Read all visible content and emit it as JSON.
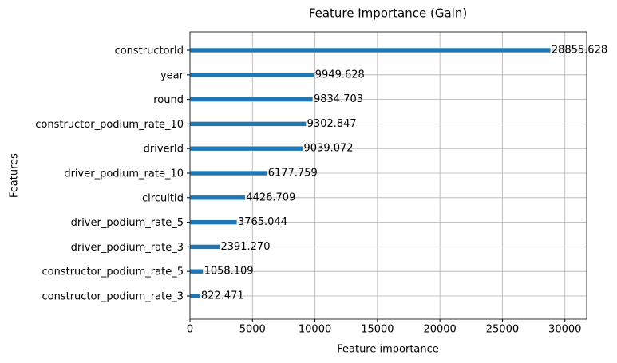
{
  "chart_data": {
    "type": "barh",
    "title": "Feature Importance (Gain)",
    "x_label": "Feature importance",
    "y_label": "Features",
    "categories": [
      "constructorId",
      "year",
      "round",
      "constructor_podium_rate_10",
      "driverId",
      "driver_podium_rate_10",
      "circuitId",
      "driver_podium_rate_5",
      "driver_podium_rate_3",
      "constructor_podium_rate_5",
      "constructor_podium_rate_3"
    ],
    "values": [
      28855.628,
      9949.628,
      9834.703,
      9302.847,
      9039.072,
      6177.759,
      4426.709,
      3765.044,
      2391.27,
      1058.109,
      822.471
    ],
    "value_labels": [
      "28855.628",
      "9949.628",
      "9834.703",
      "9302.847",
      "9039.072",
      "6177.759",
      "4426.709",
      "3765.044",
      "2391.270",
      "1058.109",
      "822.471"
    ],
    "color": "#1f77b4",
    "xlim": [
      0,
      31741
    ],
    "xticks": [
      0,
      5000,
      10000,
      15000,
      20000,
      25000,
      30000
    ],
    "grid": true
  }
}
